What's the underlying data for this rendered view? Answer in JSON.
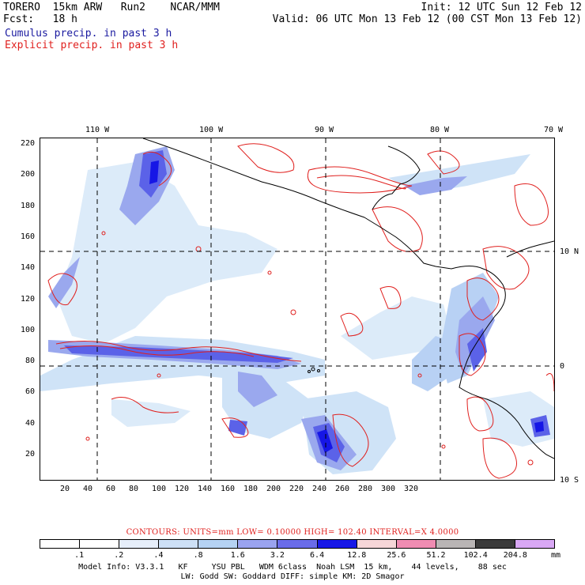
{
  "header": {
    "line1_left": "TORERO  15km ARW   Run2    NCAR/MMM",
    "line1_right": "Init: 12 UTC Sun 12 Feb 12",
    "line2_left": "Fcst:   18 h",
    "line2_right": "Valid: 06 UTC Mon 13 Feb 12 (00 CST Mon 13 Feb 12)",
    "cumulus_label": "Cumulus precip. in past 3 h",
    "explicit_label": "Explicit precip. in past 3 h"
  },
  "map": {
    "lon_labels": [
      "110 W",
      "100 W",
      "90 W",
      "80 W",
      "70 W"
    ],
    "lat_labels": [
      "10 N",
      "0",
      "10 S"
    ],
    "y_ticks": [
      "220",
      "200",
      "180",
      "160",
      "140",
      "120",
      "100",
      "80",
      "60",
      "40",
      "20"
    ],
    "x_ticks": [
      "20",
      "40",
      "60",
      "80",
      "100",
      "120",
      "140",
      "160",
      "180",
      "200",
      "220",
      "240",
      "260",
      "280",
      "300",
      "320"
    ],
    "colors": {
      "shade_light": "#cfe3f7",
      "shade_mid": "#9aa8ee",
      "shade_dark": "#5b62e8",
      "shade_core": "#1616e6",
      "explicit_contour": "#e0201e",
      "coastline": "#000000"
    }
  },
  "contours_line": "CONTOURS:  UNITS=mm  LOW= 0.10000      HIGH=  102.40      INTERVAL=X  4.0000",
  "colorbar": {
    "labels": [
      ".1",
      ".2",
      ".4",
      ".8",
      "1.6",
      "3.2",
      "6.4",
      "12.8",
      "25.6",
      "51.2",
      "102.4",
      "204.8"
    ],
    "unit": "mm",
    "colors": [
      "#ffffff",
      "#ffffff",
      "#e6eefa",
      "#cde0f6",
      "#b5d2f3",
      "#9aa3ef",
      "#6a6ce9",
      "#1818e6",
      "#f6d6d8",
      "#ef8cb2",
      "#b9b5b5",
      "#3a3a3a",
      "#d9a8f5"
    ]
  },
  "footer": {
    "line1": "Model Info: V3.3.1   KF     YSU PBL   WDM 6class  Noah LSM  15 km,    44 levels,    88 sec",
    "line2": "LW: Godd SW: Goddard DIFF: simple KM: 2D Smagor"
  }
}
